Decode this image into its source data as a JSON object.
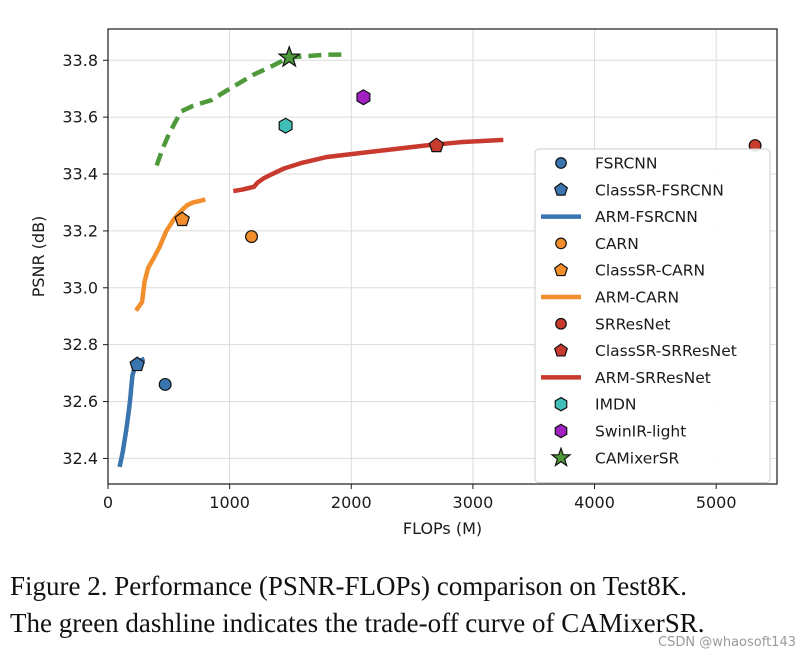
{
  "chart_data": {
    "type": "scatter",
    "title": "",
    "xlabel": "FLOPs (M)",
    "ylabel": "PSNR (dB)",
    "xlim": [
      0,
      5500
    ],
    "ylim": [
      32.31,
      33.91
    ],
    "xticks": [
      0,
      1000,
      2000,
      3000,
      4000,
      5000
    ],
    "yticks": [
      32.4,
      32.6,
      32.8,
      33.0,
      33.2,
      33.4,
      33.6,
      33.8
    ],
    "ytick_labels": [
      "32.4",
      "32.6",
      "32.8",
      "33.0",
      "33.2",
      "33.4",
      "33.6",
      "33.8"
    ],
    "grid": true,
    "legend_position": "lower-right",
    "colors": {
      "blue": "#3a75b0",
      "orange": "#f28e2b",
      "red": "#c8392e",
      "teal": "#3fbfb8",
      "purple": "#a020c0",
      "green": "#4e9a3a"
    },
    "series": [
      {
        "name": "FSRCNN",
        "kind": "point",
        "marker": "circle",
        "color": "#3a75b0",
        "x": [
          470
        ],
        "y": [
          32.66
        ]
      },
      {
        "name": "ClassSR-FSRCNN",
        "kind": "point",
        "marker": "pentagon",
        "color": "#3a75b0",
        "x": [
          240
        ],
        "y": [
          32.73
        ]
      },
      {
        "name": "ARM-FSRCNN",
        "kind": "line",
        "style": "solid",
        "color": "#3a75b0",
        "x": [
          95,
          120,
          150,
          175,
          185,
          200,
          220,
          245,
          270,
          300
        ],
        "y": [
          32.37,
          32.42,
          32.5,
          32.58,
          32.62,
          32.69,
          32.72,
          32.735,
          32.745,
          32.75
        ]
      },
      {
        "name": "CARN",
        "kind": "point",
        "marker": "circle",
        "color": "#f28e2b",
        "x": [
          1180
        ],
        "y": [
          33.18
        ]
      },
      {
        "name": "ClassSR-CARN",
        "kind": "point",
        "marker": "pentagon",
        "color": "#f28e2b",
        "x": [
          610
        ],
        "y": [
          33.24
        ]
      },
      {
        "name": "ARM-CARN",
        "kind": "line",
        "style": "solid",
        "color": "#f28e2b",
        "x": [
          230,
          280,
          300,
          330,
          370,
          420,
          480,
          540,
          600,
          650,
          700,
          750,
          800
        ],
        "y": [
          32.92,
          32.95,
          33.02,
          33.07,
          33.1,
          33.14,
          33.2,
          33.24,
          33.27,
          33.29,
          33.3,
          33.305,
          33.31
        ]
      },
      {
        "name": "SRResNet",
        "kind": "point",
        "marker": "circle",
        "color": "#c8392e",
        "x": [
          5320
        ],
        "y": [
          33.5
        ]
      },
      {
        "name": "ClassSR-SRResNet",
        "kind": "point",
        "marker": "pentagon",
        "color": "#c8392e",
        "x": [
          2700
        ],
        "y": [
          33.5
        ]
      },
      {
        "name": "ARM-SRResNet",
        "kind": "line",
        "style": "solid",
        "color": "#c8392e",
        "x": [
          1030,
          1100,
          1150,
          1200,
          1230,
          1280,
          1350,
          1450,
          1600,
          1800,
          2000,
          2300,
          2600,
          2900,
          3250
        ],
        "y": [
          33.34,
          33.345,
          33.35,
          33.355,
          33.37,
          33.385,
          33.4,
          33.42,
          33.44,
          33.46,
          33.47,
          33.485,
          33.5,
          33.512,
          33.52
        ]
      },
      {
        "name": "IMDN",
        "kind": "point",
        "marker": "hexagon",
        "color": "#3fbfb8",
        "x": [
          1460
        ],
        "y": [
          33.57
        ]
      },
      {
        "name": "SwinIR-light",
        "kind": "point",
        "marker": "hexagon",
        "color": "#a020c0",
        "x": [
          2100
        ],
        "y": [
          33.67
        ]
      },
      {
        "name": "CAMixerSR",
        "kind": "point",
        "marker": "star",
        "color": "#4e9a3a",
        "x": [
          1490
        ],
        "y": [
          33.81
        ]
      },
      {
        "name": "CAMixerSR trade-off",
        "kind": "line",
        "style": "dashed",
        "color": "#4e9a3a",
        "in_legend": false,
        "x": [
          400,
          450,
          500,
          550,
          600,
          700,
          850,
          1000,
          1200,
          1350,
          1490,
          1650,
          1800,
          1950
        ],
        "y": [
          33.43,
          33.49,
          33.54,
          33.58,
          33.62,
          33.64,
          33.66,
          33.7,
          33.75,
          33.78,
          33.81,
          33.815,
          33.82,
          33.82
        ]
      }
    ]
  },
  "caption": {
    "line1": "Figure 2.  Performance (PSNR-FLOPs) comparison on Test8K.",
    "line2": "The green dashline indicates the trade-off curve of CAMixerSR."
  },
  "watermark": "CSDN @whaosoft143"
}
